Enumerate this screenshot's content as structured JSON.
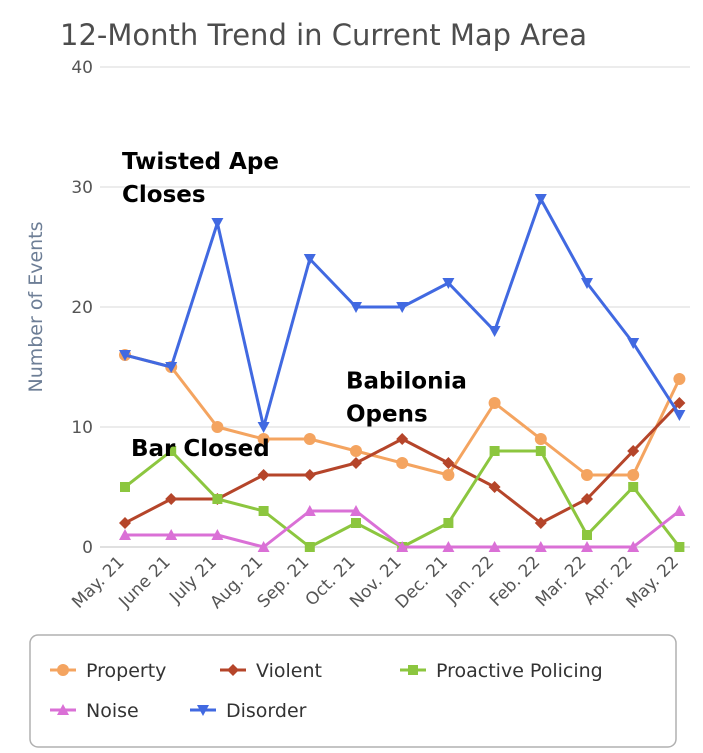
{
  "chart_data": {
    "type": "line",
    "title": "12-Month Trend in Current Map Area",
    "ylabel": "Number of Events",
    "xlabel": "",
    "ylim": [
      0,
      40
    ],
    "yticks": [
      0,
      10,
      20,
      30,
      40
    ],
    "categories": [
      "May. 21",
      "June 21",
      "July 21",
      "Aug. 21",
      "Sep. 21",
      "Oct. 21",
      "Nov. 21",
      "Dec. 21",
      "Jan. 22",
      "Feb. 22",
      "Mar. 22",
      "Apr. 22",
      "May. 22"
    ],
    "series": [
      {
        "name": "Property",
        "color": "#f4a460",
        "marker": "circle",
        "values": [
          16,
          15,
          10,
          9,
          9,
          8,
          7,
          6,
          12,
          9,
          6,
          6,
          14
        ]
      },
      {
        "name": "Violent",
        "color": "#b5452a",
        "marker": "diamond",
        "values": [
          2,
          4,
          4,
          6,
          6,
          7,
          9,
          7,
          5,
          2,
          4,
          8,
          12
        ]
      },
      {
        "name": "Proactive Policing",
        "color": "#8cc63f",
        "marker": "square",
        "values": [
          5,
          8,
          4,
          3,
          0,
          2,
          0,
          2,
          8,
          8,
          1,
          5,
          0
        ]
      },
      {
        "name": "Noise",
        "color": "#da70d6",
        "marker": "triangle-up",
        "values": [
          1,
          1,
          1,
          0,
          3,
          3,
          0,
          0,
          0,
          0,
          0,
          0,
          3
        ]
      },
      {
        "name": "Disorder",
        "color": "#4169e1",
        "marker": "triangle-down",
        "values": [
          16,
          15,
          27,
          10,
          24,
          20,
          20,
          22,
          18,
          29,
          22,
          17,
          11
        ]
      }
    ],
    "annotations": [
      {
        "lines": [
          "Twisted Ape",
          "Closes"
        ],
        "at_category": "July 21",
        "at_value": 31.5
      },
      {
        "lines": [
          "Babilonia",
          "Opens"
        ],
        "at_category": "Nov. 21",
        "at_value": 13.2
      },
      {
        "lines": [
          "Bar Closed"
        ],
        "at_category": "July 21",
        "at_value": 7.6
      }
    ],
    "grid": true,
    "legend_placement": "bottom"
  }
}
